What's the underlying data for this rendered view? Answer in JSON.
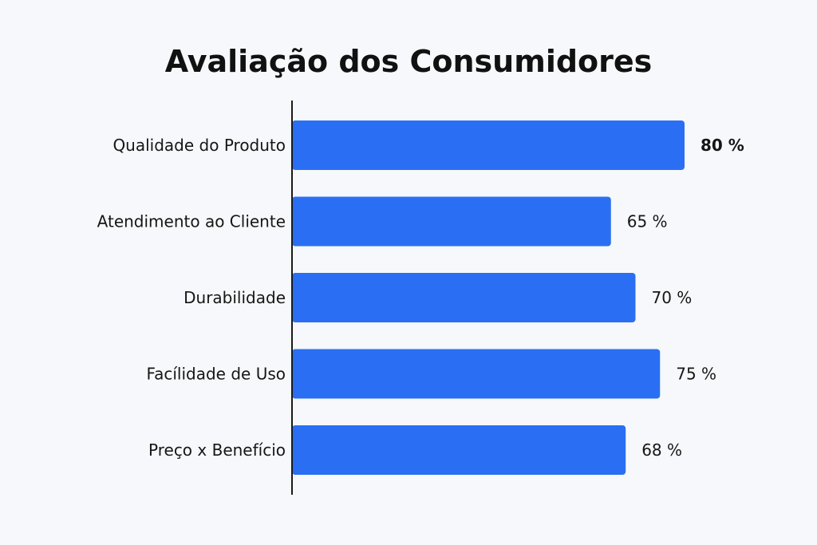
{
  "chart_data": {
    "type": "bar",
    "orientation": "horizontal",
    "title": "Avaliação dos Consumidores",
    "categories": [
      "Qualidade do Produto",
      "Atendimento ao Cliente",
      "Durabilidade",
      "Facílidade de Uso",
      "Preço x Benefício"
    ],
    "values": [
      80,
      65,
      70,
      75,
      68
    ],
    "value_labels": [
      "80 %",
      "65 %",
      "70 %",
      "75 %",
      "68 %"
    ],
    "bold_value_index": 0,
    "xlim": [
      0,
      80
    ],
    "grid": false,
    "bar_color": "#2a6ff3"
  }
}
